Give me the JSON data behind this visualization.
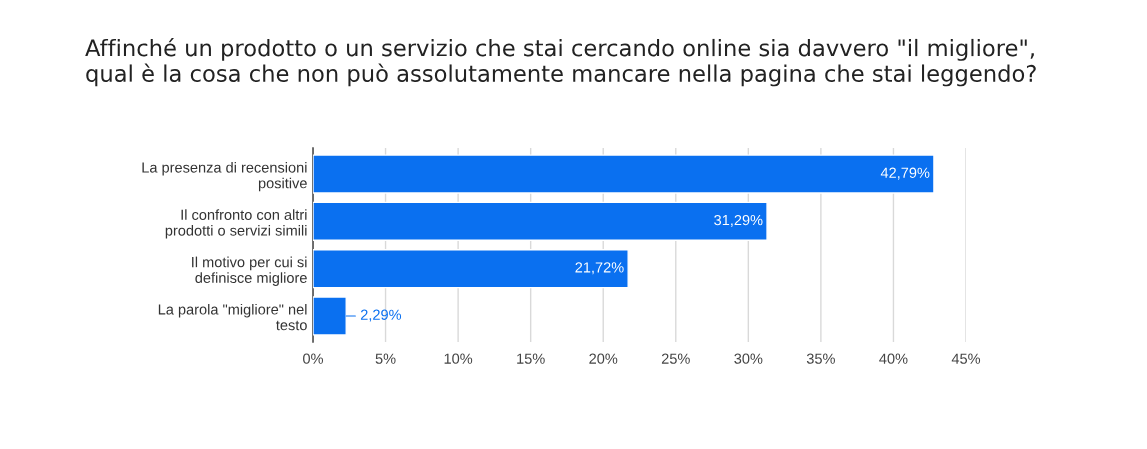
{
  "chart_data": {
    "type": "bar",
    "orientation": "horizontal",
    "title": "Affinché un prodotto o un servizio che stai cercando online sia davvero \"il migliore\",\nqual è la cosa che non può assolutamente mancare nella pagina che stai leggendo?",
    "categories": [
      "La presenza di recensioni\npositive",
      "Il confronto con altri\nprodotti o servizi simili",
      "Il motivo per cui si\ndefinisce migliore",
      "La parola \"migliore\" nel\ntesto"
    ],
    "values": [
      42.79,
      31.29,
      21.72,
      2.29
    ],
    "value_labels": [
      "42,79%",
      "31,29%",
      "21,72%",
      "2,29%"
    ],
    "color": "#0a70f0",
    "xlim": [
      0,
      45
    ],
    "xticks": [
      {
        "value": 0,
        "label": "0%"
      },
      {
        "value": 5,
        "label": "5%"
      },
      {
        "value": 10,
        "label": "10%"
      },
      {
        "value": 15,
        "label": "15%"
      },
      {
        "value": 20,
        "label": "20%"
      },
      {
        "value": 25,
        "label": "25%"
      },
      {
        "value": 30,
        "label": "30%"
      },
      {
        "value": 35,
        "label": "35%"
      },
      {
        "value": 40,
        "label": "40%"
      },
      {
        "value": 45,
        "label": "45%"
      }
    ],
    "grid": "x",
    "legend": false
  }
}
